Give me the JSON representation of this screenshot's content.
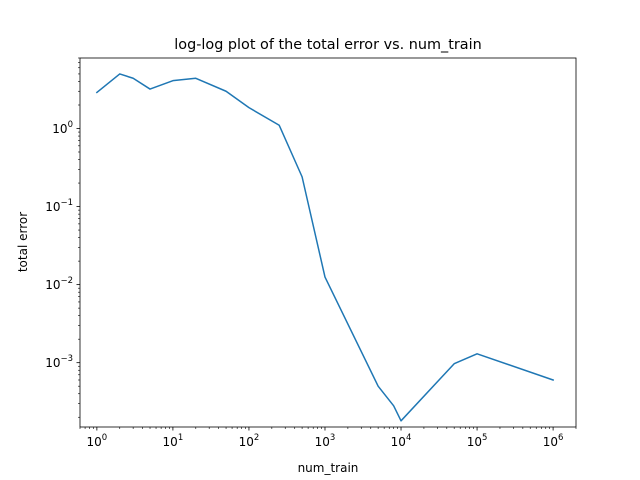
{
  "chart_data": {
    "type": "line",
    "title": "log-log plot of the total error vs. num_train",
    "xlabel": "num_train",
    "ylabel": "total error",
    "xscale": "log",
    "yscale": "log",
    "xlim": [
      0.6,
      2000000
    ],
    "ylim": [
      0.00015,
      8
    ],
    "grid": false,
    "x_major_ticks": [
      {
        "value": 1,
        "base": "10",
        "exp": "0"
      },
      {
        "value": 10,
        "base": "10",
        "exp": "1"
      },
      {
        "value": 100,
        "base": "10",
        "exp": "2"
      },
      {
        "value": 1000,
        "base": "10",
        "exp": "3"
      },
      {
        "value": 10000,
        "base": "10",
        "exp": "4"
      },
      {
        "value": 100000,
        "base": "10",
        "exp": "5"
      },
      {
        "value": 1000000,
        "base": "10",
        "exp": "6"
      }
    ],
    "y_major_ticks": [
      {
        "value": 0.001,
        "base": "10",
        "exp": "−3"
      },
      {
        "value": 0.01,
        "base": "10",
        "exp": "−2"
      },
      {
        "value": 0.1,
        "base": "10",
        "exp": "−1"
      },
      {
        "value": 1,
        "base": "10",
        "exp": "0"
      }
    ],
    "series": [
      {
        "color": "#1f77b4",
        "x": [
          1,
          2,
          3,
          5,
          10,
          20,
          50,
          100,
          250,
          500,
          1000,
          5000,
          8000,
          10000,
          50000,
          100000,
          1000000
        ],
        "y": [
          2.9,
          5.0,
          4.4,
          3.2,
          4.1,
          4.4,
          3.0,
          1.85,
          1.1,
          0.24,
          0.0125,
          0.0005,
          0.00028,
          0.00018,
          0.00097,
          0.0013,
          0.0006
        ]
      }
    ]
  }
}
